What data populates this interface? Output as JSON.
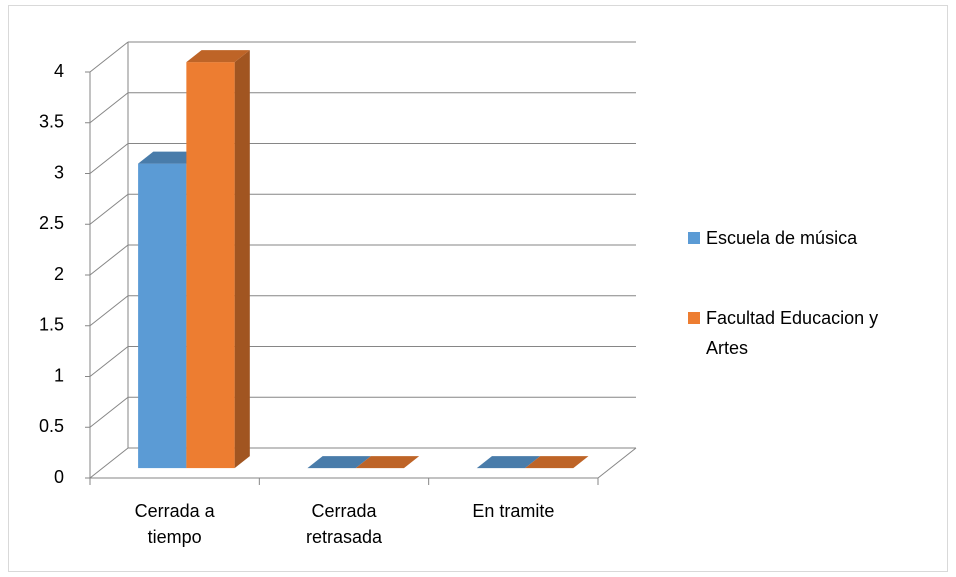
{
  "chart_data": {
    "type": "bar3d",
    "categories": [
      "Cerrada a tiempo",
      "Cerrada retrasada",
      "En tramite"
    ],
    "series": [
      {
        "name": "Escuela de música",
        "color": "#5b9bd5",
        "values": [
          3,
          0,
          0
        ]
      },
      {
        "name": "Facultad Educacion y Artes",
        "color": "#ed7d31",
        "values": [
          4,
          0,
          0
        ]
      }
    ],
    "ylim": [
      0,
      4
    ],
    "yticks": [
      0,
      0.5,
      1,
      1.5,
      2,
      2.5,
      3,
      3.5,
      4
    ],
    "grid": true,
    "legend": "right"
  }
}
